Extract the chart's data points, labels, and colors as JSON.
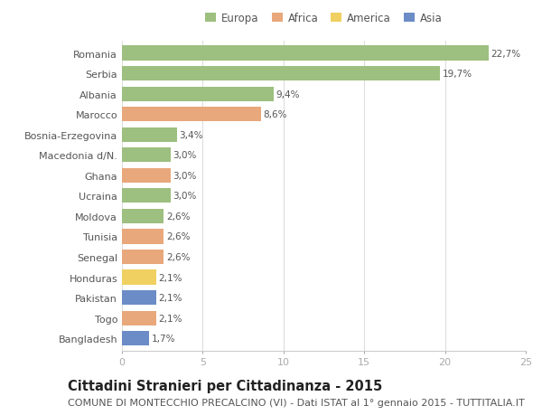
{
  "countries": [
    "Romania",
    "Serbia",
    "Albania",
    "Marocco",
    "Bosnia-Erzegovina",
    "Macedonia d/N.",
    "Ghana",
    "Ucraina",
    "Moldova",
    "Tunisia",
    "Senegal",
    "Honduras",
    "Pakistan",
    "Togo",
    "Bangladesh"
  ],
  "values": [
    22.7,
    19.7,
    9.4,
    8.6,
    3.4,
    3.0,
    3.0,
    3.0,
    2.6,
    2.6,
    2.6,
    2.1,
    2.1,
    2.1,
    1.7
  ],
  "labels": [
    "22,7%",
    "19,7%",
    "9,4%",
    "8,6%",
    "3,4%",
    "3,0%",
    "3,0%",
    "3,0%",
    "2,6%",
    "2,6%",
    "2,6%",
    "2,1%",
    "2,1%",
    "2,1%",
    "1,7%"
  ],
  "continents": [
    "Europa",
    "Europa",
    "Europa",
    "Africa",
    "Europa",
    "Europa",
    "Africa",
    "Europa",
    "Europa",
    "Africa",
    "Africa",
    "America",
    "Asia",
    "Africa",
    "Asia"
  ],
  "colors": {
    "Europa": "#9dbf7f",
    "Africa": "#e8a87c",
    "America": "#f0d060",
    "Asia": "#6b8cc7"
  },
  "legend_labels": [
    "Europa",
    "Africa",
    "America",
    "Asia"
  ],
  "legend_colors": [
    "#9dbf7f",
    "#e8a87c",
    "#f0d060",
    "#6b8cc7"
  ],
  "title": "Cittadini Stranieri per Cittadinanza - 2015",
  "subtitle": "COMUNE DI MONTECCHIO PRECALCINO (VI) - Dati ISTAT al 1° gennaio 2015 - TUTTITALIA.IT",
  "xlim": [
    0,
    25
  ],
  "xticks": [
    0,
    5,
    10,
    15,
    20,
    25
  ],
  "background_color": "#ffffff",
  "bar_height": 0.72,
  "title_fontsize": 10.5,
  "subtitle_fontsize": 8,
  "label_fontsize": 7.5,
  "tick_fontsize": 8,
  "legend_fontsize": 8.5
}
